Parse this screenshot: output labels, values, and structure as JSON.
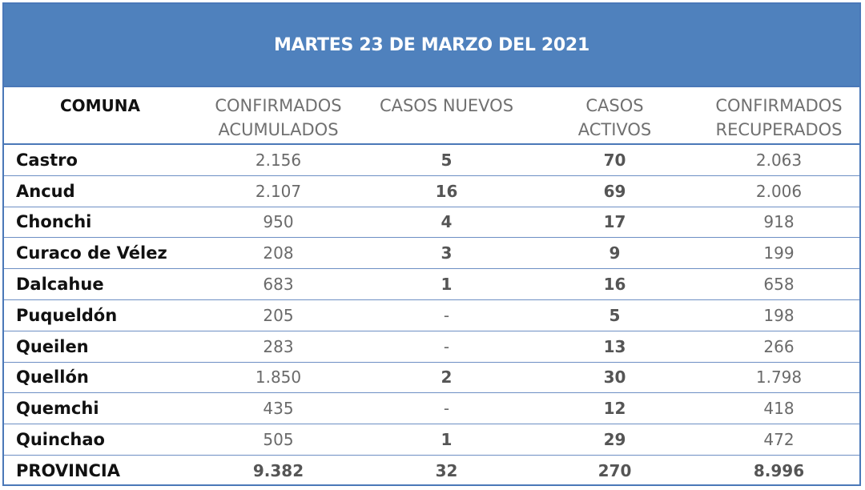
{
  "title": "MARTES 23 DE MARZO DEL 2021",
  "headers": {
    "comuna": "COMUNA",
    "confirmados_acumulados": [
      "CONFIRMADOS",
      "ACUMULADOS"
    ],
    "casos_nuevos": [
      "CASOS NUEVOS"
    ],
    "casos_activos": [
      "CASOS",
      "ACTIVOS"
    ],
    "confirmados_recuperados": [
      "CONFIRMADOS",
      "RECUPERADOS"
    ]
  },
  "rows": [
    {
      "comuna": "Castro",
      "acumulados": "2.156",
      "nuevos": "5",
      "activos": "70",
      "recuperados": "2.063"
    },
    {
      "comuna": "Ancud",
      "acumulados": "2.107",
      "nuevos": "16",
      "activos": "69",
      "recuperados": "2.006"
    },
    {
      "comuna": "Chonchi",
      "acumulados": "950",
      "nuevos": "4",
      "activos": "17",
      "recuperados": "918"
    },
    {
      "comuna": "Curaco de Vélez",
      "acumulados": "208",
      "nuevos": "3",
      "activos": "9",
      "recuperados": "199"
    },
    {
      "comuna": "Dalcahue",
      "acumulados": "683",
      "nuevos": "1",
      "activos": "16",
      "recuperados": "658"
    },
    {
      "comuna": "Puqueldón",
      "acumulados": "205",
      "nuevos": "-",
      "activos": "5",
      "recuperados": "198"
    },
    {
      "comuna": "Queilen",
      "acumulados": "283",
      "nuevos": "-",
      "activos": "13",
      "recuperados": "266"
    },
    {
      "comuna": "Quellón",
      "acumulados": "1.850",
      "nuevos": "2",
      "activos": "30",
      "recuperados": "1.798"
    },
    {
      "comuna": "Quemchi",
      "acumulados": "435",
      "nuevos": "-",
      "activos": "12",
      "recuperados": "418"
    },
    {
      "comuna": "Quinchao",
      "acumulados": "505",
      "nuevos": "1",
      "activos": "29",
      "recuperados": "472"
    }
  ],
  "total": {
    "comuna": "PROVINCIA",
    "acumulados": "9.382",
    "nuevos": "32",
    "activos": "270",
    "recuperados": "8.996"
  },
  "colors": {
    "header_bg": "#4f81bd",
    "border": "#4a78b8"
  }
}
